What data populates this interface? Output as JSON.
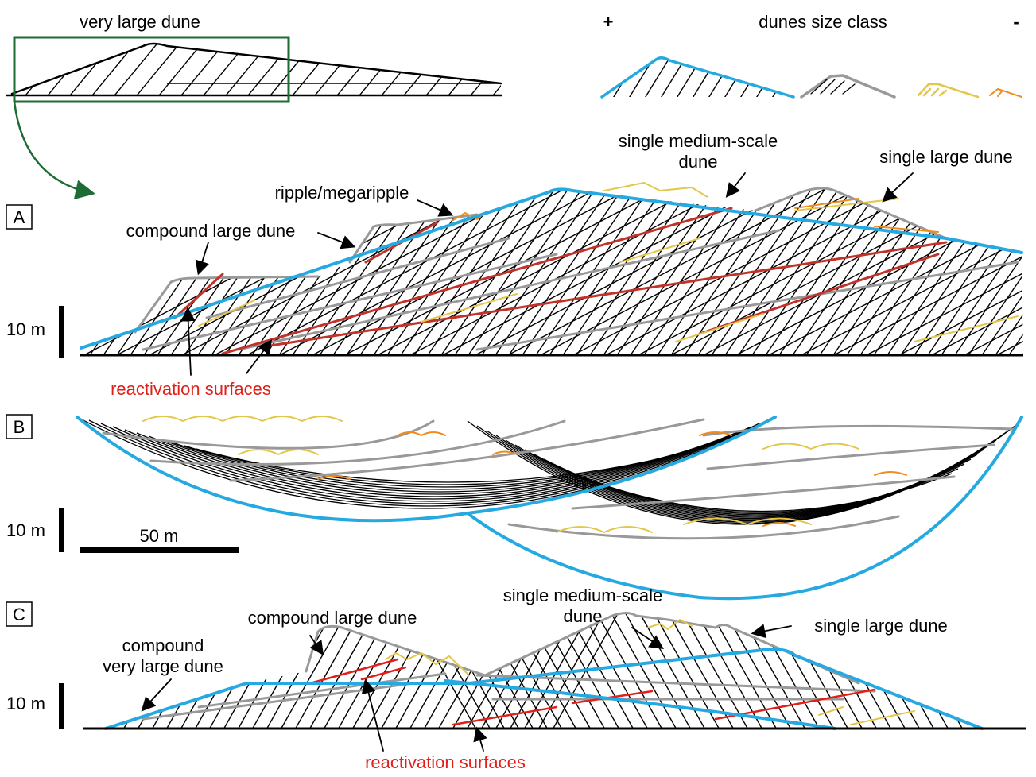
{
  "inset": {
    "title": "very large dune"
  },
  "size_class": {
    "plus": "+",
    "title": "dunes size class",
    "minus": "-"
  },
  "panel_a": {
    "letter": "A",
    "scale": "10 m",
    "labels": {
      "single_medium": [
        "single medium-scale",
        "dune"
      ],
      "single_large": "single large dune",
      "ripple": "ripple/megaripple",
      "compound_large": "compound large dune",
      "reactivation": "reactivation surfaces"
    }
  },
  "panel_b": {
    "letter": "B",
    "scale": "10 m",
    "length_scale": "50 m"
  },
  "panel_c": {
    "letter": "C",
    "scale": "10 m",
    "labels": {
      "compound_very_large": [
        "compound",
        "very large dune"
      ],
      "compound_large": "compound large dune",
      "single_medium": [
        "single medium-scale",
        "dune"
      ],
      "single_large": "single large dune",
      "reactivation": "reactivation surfaces"
    }
  }
}
